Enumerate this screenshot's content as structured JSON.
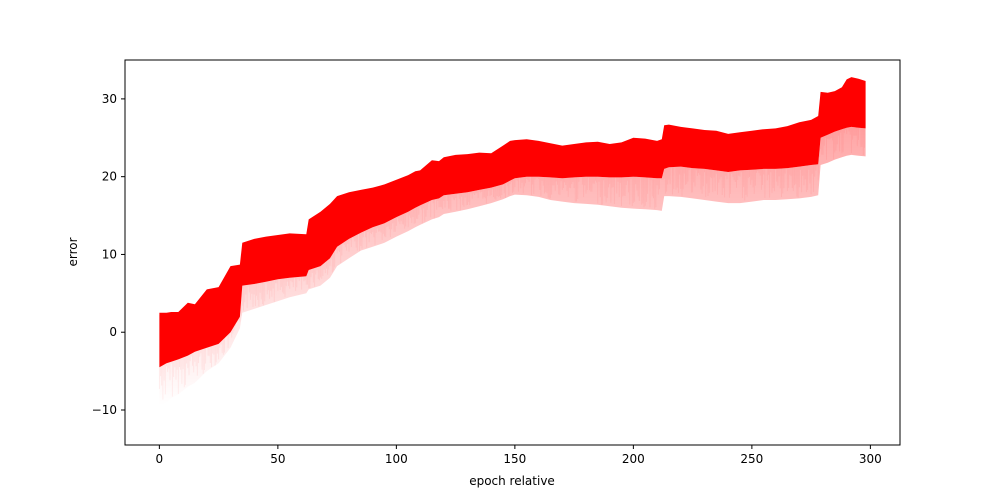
{
  "chart_data": {
    "type": "area",
    "title": "",
    "xlabel": "epoch relative",
    "ylabel": "error",
    "xlim": [
      -14.5,
      312.5
    ],
    "ylim": [
      -14.5,
      35
    ],
    "grid": false,
    "x_ticks": [
      0,
      50,
      100,
      150,
      200,
      250,
      300
    ],
    "y_ticks": [
      -10,
      0,
      10,
      20,
      30
    ],
    "color": "#ff0000",
    "series": [
      {
        "x": [
          0,
          3,
          5,
          8,
          12,
          15,
          20,
          25,
          30,
          34,
          35,
          40,
          45,
          50,
          55,
          62,
          63,
          68,
          72,
          75,
          80,
          85,
          90,
          95,
          100,
          105,
          108,
          110,
          115,
          118,
          120,
          125,
          130,
          135,
          140,
          145,
          148,
          150,
          155,
          160,
          165,
          170,
          175,
          180,
          185,
          190,
          195,
          200,
          205,
          210,
          212,
          213,
          215,
          220,
          225,
          230,
          235,
          240,
          245,
          250,
          255,
          260,
          265,
          270,
          275,
          278,
          279,
          282,
          285,
          288,
          290,
          292,
          295,
          298
        ],
        "upper": [
          2.5,
          2.5,
          2.6,
          2.6,
          3.8,
          3.6,
          5.5,
          5.8,
          8.5,
          8.7,
          11.5,
          12.0,
          12.3,
          12.5,
          12.7,
          12.6,
          14.5,
          15.5,
          16.5,
          17.5,
          18.0,
          18.3,
          18.6,
          19.0,
          19.6,
          20.2,
          20.7,
          20.8,
          22.1,
          22.0,
          22.5,
          22.8,
          22.9,
          23.1,
          23.0,
          24.0,
          24.6,
          24.7,
          24.8,
          24.6,
          24.3,
          24.0,
          24.2,
          24.4,
          24.5,
          24.2,
          24.4,
          25.0,
          24.9,
          24.6,
          24.8,
          26.6,
          26.7,
          26.4,
          26.2,
          26.0,
          25.9,
          25.5,
          25.7,
          25.9,
          26.1,
          26.2,
          26.5,
          27.0,
          27.3,
          27.8,
          30.9,
          30.8,
          31.0,
          31.5,
          32.5,
          32.8,
          32.6,
          32.3
        ],
        "core_lower": [
          -4.5,
          -4.0,
          -3.8,
          -3.5,
          -3.0,
          -2.5,
          -2.0,
          -1.5,
          0.0,
          2.0,
          6.0,
          6.2,
          6.5,
          6.8,
          7.0,
          7.2,
          8.0,
          8.5,
          9.5,
          11.0,
          12.0,
          12.8,
          13.5,
          14.0,
          14.8,
          15.5,
          16.0,
          16.3,
          17.0,
          17.2,
          17.6,
          17.8,
          18.0,
          18.3,
          18.6,
          19.0,
          19.5,
          19.8,
          20.0,
          20.0,
          19.9,
          19.8,
          19.9,
          20.0,
          20.0,
          19.9,
          19.9,
          20.0,
          19.9,
          19.8,
          19.8,
          21.0,
          21.2,
          21.3,
          21.1,
          21.0,
          20.8,
          20.6,
          20.8,
          20.9,
          21.0,
          21.0,
          21.1,
          21.3,
          21.5,
          21.6,
          25.0,
          25.4,
          25.8,
          26.1,
          26.3,
          26.4,
          26.3,
          26.2
        ],
        "faint_lower": [
          -9.5,
          -9.0,
          -8.5,
          -8.0,
          -7.0,
          -6.5,
          -5.0,
          -4.0,
          -2.0,
          0.5,
          2.5,
          3.0,
          3.5,
          4.0,
          4.5,
          5.0,
          5.5,
          6.0,
          7.0,
          8.5,
          9.5,
          10.5,
          11.0,
          11.5,
          12.3,
          13.0,
          13.5,
          13.8,
          14.5,
          14.8,
          15.2,
          15.5,
          15.8,
          16.2,
          16.6,
          17.1,
          17.5,
          17.7,
          17.6,
          17.4,
          17.0,
          16.8,
          16.6,
          16.5,
          16.4,
          16.2,
          16.0,
          15.9,
          15.8,
          15.7,
          15.6,
          17.5,
          17.5,
          17.4,
          17.2,
          17.0,
          16.8,
          16.6,
          16.6,
          16.8,
          17.0,
          17.0,
          17.1,
          17.2,
          17.4,
          17.6,
          21.5,
          21.8,
          22.2,
          22.5,
          22.7,
          22.8,
          22.7,
          22.6
        ]
      }
    ]
  }
}
